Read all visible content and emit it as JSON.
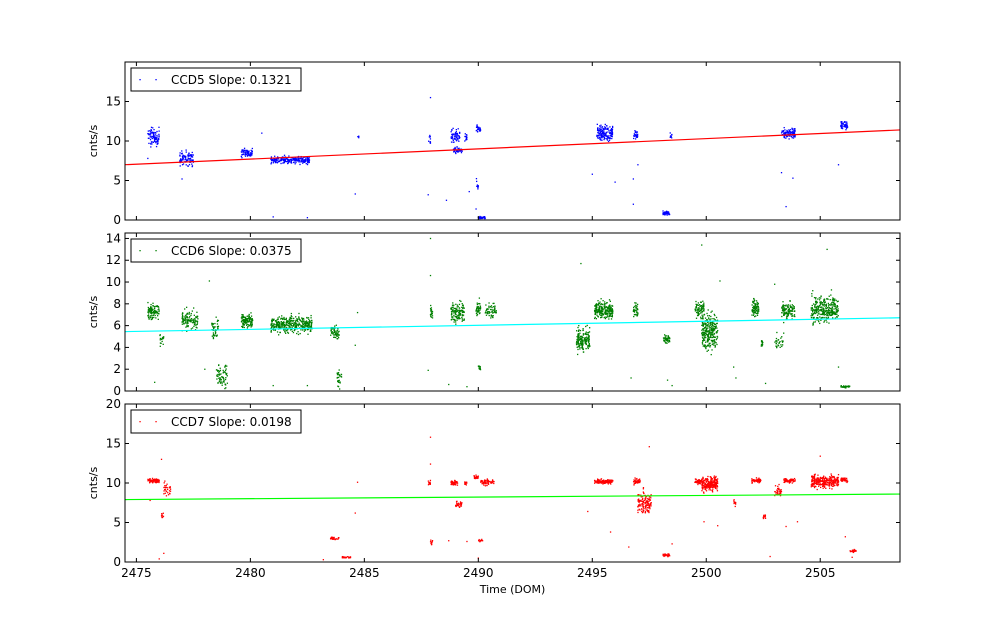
{
  "chart_data": {
    "type": "scatter",
    "xlabel": "Time (DOM)",
    "xlim": [
      2474.5,
      2508.5
    ],
    "xticks": [
      2475,
      2480,
      2485,
      2490,
      2495,
      2500,
      2505
    ],
    "legend_placement": "top-left",
    "grid": false,
    "panels": [
      {
        "name": "CCD5",
        "legend": "CCD5 Slope: 0.1321",
        "ylabel": "cnts/s",
        "ylim": [
          0,
          20
        ],
        "yticks": [
          0,
          5,
          10,
          15
        ],
        "color": "#0000ff",
        "fit_color": "#ff0000",
        "fit": {
          "x0": 2474.5,
          "y0": 7.0,
          "x1": 2508.5,
          "y1": 11.4
        },
        "clusters": [
          {
            "x0": 2475.5,
            "x1": 2476.0,
            "y": 10.5,
            "spread": 1.2,
            "n": 90
          },
          {
            "x0": 2476.9,
            "x1": 2477.5,
            "y": 7.8,
            "spread": 1.0,
            "n": 90
          },
          {
            "x0": 2479.6,
            "x1": 2480.1,
            "y": 8.5,
            "spread": 0.6,
            "n": 70
          },
          {
            "x0": 2480.9,
            "x1": 2482.6,
            "y": 7.6,
            "spread": 0.5,
            "n": 220
          },
          {
            "x0": 2484.7,
            "x1": 2484.8,
            "y": 10.5,
            "spread": 0.2,
            "n": 4
          },
          {
            "x0": 2487.8,
            "x1": 2487.9,
            "y": 10.3,
            "spread": 1.2,
            "n": 10
          },
          {
            "x0": 2488.8,
            "x1": 2489.2,
            "y": 10.5,
            "spread": 1.0,
            "n": 60
          },
          {
            "x0": 2488.9,
            "x1": 2489.3,
            "y": 8.8,
            "spread": 0.4,
            "n": 40
          },
          {
            "x0": 2489.4,
            "x1": 2489.5,
            "y": 10.5,
            "spread": 0.7,
            "n": 15
          },
          {
            "x0": 2489.9,
            "x1": 2490.1,
            "y": 11.6,
            "spread": 0.5,
            "n": 25
          },
          {
            "x0": 2489.9,
            "x1": 2490.0,
            "y": 4.5,
            "spread": 1.0,
            "n": 10
          },
          {
            "x0": 2490.0,
            "x1": 2490.3,
            "y": 0.3,
            "spread": 0.15,
            "n": 35
          },
          {
            "x0": 2495.2,
            "x1": 2495.9,
            "y": 11.0,
            "spread": 1.0,
            "n": 150
          },
          {
            "x0": 2496.8,
            "x1": 2497.0,
            "y": 10.8,
            "spread": 0.5,
            "n": 30
          },
          {
            "x0": 2498.1,
            "x1": 2498.4,
            "y": 0.9,
            "spread": 0.3,
            "n": 40
          },
          {
            "x0": 2498.4,
            "x1": 2498.5,
            "y": 10.7,
            "spread": 0.5,
            "n": 8
          },
          {
            "x0": 2503.3,
            "x1": 2503.9,
            "y": 11.0,
            "spread": 0.8,
            "n": 100
          },
          {
            "x0": 2505.9,
            "x1": 2506.2,
            "y": 12.0,
            "spread": 0.6,
            "n": 50
          }
        ],
        "outliers": [
          [
            2475.5,
            7.8
          ],
          [
            2477.0,
            5.2
          ],
          [
            2480.5,
            11.0
          ],
          [
            2481.0,
            0.4
          ],
          [
            2482.5,
            0.3
          ],
          [
            2484.6,
            3.3
          ],
          [
            2487.9,
            15.5
          ],
          [
            2487.8,
            3.2
          ],
          [
            2488.6,
            2.5
          ],
          [
            2489.6,
            3.6
          ],
          [
            2489.9,
            1.4
          ],
          [
            2495.0,
            5.8
          ],
          [
            2496.0,
            4.8
          ],
          [
            2496.8,
            2.0
          ],
          [
            2496.8,
            5.2
          ],
          [
            2497.0,
            7.0
          ],
          [
            2503.3,
            6.0
          ],
          [
            2503.5,
            1.7
          ],
          [
            2503.8,
            5.3
          ],
          [
            2505.8,
            7.0
          ]
        ]
      },
      {
        "name": "CCD6",
        "legend": "CCD6 Slope: 0.0375",
        "ylabel": "cnts/s",
        "ylim": [
          0,
          14.5
        ],
        "yticks": [
          0,
          2,
          4,
          6,
          8,
          10,
          12,
          14
        ],
        "color": "#008000",
        "fit_color": "#00ffff",
        "fit": {
          "x0": 2474.5,
          "y0": 5.45,
          "x1": 2508.5,
          "y1": 6.72
        },
        "clusters": [
          {
            "x0": 2475.5,
            "x1": 2476.0,
            "y": 7.3,
            "spread": 0.8,
            "n": 100
          },
          {
            "x0": 2476.0,
            "x1": 2476.2,
            "y": 4.7,
            "spread": 0.5,
            "n": 20
          },
          {
            "x0": 2477.0,
            "x1": 2477.7,
            "y": 6.5,
            "spread": 0.9,
            "n": 120
          },
          {
            "x0": 2478.3,
            "x1": 2478.6,
            "y": 5.8,
            "spread": 0.9,
            "n": 50
          },
          {
            "x0": 2478.5,
            "x1": 2479.0,
            "y": 1.5,
            "spread": 1.2,
            "n": 70
          },
          {
            "x0": 2479.6,
            "x1": 2480.1,
            "y": 6.4,
            "spread": 0.7,
            "n": 120
          },
          {
            "x0": 2480.9,
            "x1": 2482.7,
            "y": 6.1,
            "spread": 0.8,
            "n": 380
          },
          {
            "x0": 2483.5,
            "x1": 2483.9,
            "y": 5.4,
            "spread": 0.7,
            "n": 60
          },
          {
            "x0": 2483.8,
            "x1": 2484.0,
            "y": 1.2,
            "spread": 1.0,
            "n": 30
          },
          {
            "x0": 2487.9,
            "x1": 2488.0,
            "y": 7.3,
            "spread": 0.8,
            "n": 20
          },
          {
            "x0": 2488.8,
            "x1": 2489.4,
            "y": 7.2,
            "spread": 0.9,
            "n": 130
          },
          {
            "x0": 2489.9,
            "x1": 2490.1,
            "y": 7.5,
            "spread": 0.8,
            "n": 40
          },
          {
            "x0": 2490.0,
            "x1": 2490.1,
            "y": 2.2,
            "spread": 0.3,
            "n": 12
          },
          {
            "x0": 2490.3,
            "x1": 2490.8,
            "y": 7.4,
            "spread": 0.7,
            "n": 60
          },
          {
            "x0": 2494.3,
            "x1": 2494.9,
            "y": 4.7,
            "spread": 1.3,
            "n": 170
          },
          {
            "x0": 2495.1,
            "x1": 2495.9,
            "y": 7.4,
            "spread": 0.8,
            "n": 230
          },
          {
            "x0": 2496.8,
            "x1": 2497.0,
            "y": 7.4,
            "spread": 0.7,
            "n": 40
          },
          {
            "x0": 2498.1,
            "x1": 2498.4,
            "y": 4.8,
            "spread": 0.5,
            "n": 40
          },
          {
            "x0": 2499.5,
            "x1": 2499.9,
            "y": 7.5,
            "spread": 0.8,
            "n": 80
          },
          {
            "x0": 2499.8,
            "x1": 2500.5,
            "y": 5.5,
            "spread": 1.8,
            "n": 260
          },
          {
            "x0": 2502.0,
            "x1": 2502.3,
            "y": 7.6,
            "spread": 0.8,
            "n": 80
          },
          {
            "x0": 2502.4,
            "x1": 2502.5,
            "y": 4.4,
            "spread": 0.4,
            "n": 15
          },
          {
            "x0": 2503.3,
            "x1": 2503.9,
            "y": 7.4,
            "spread": 0.9,
            "n": 120
          },
          {
            "x0": 2503.0,
            "x1": 2503.4,
            "y": 4.5,
            "spread": 0.8,
            "n": 30
          },
          {
            "x0": 2504.6,
            "x1": 2505.8,
            "y": 7.5,
            "spread": 1.3,
            "n": 300
          },
          {
            "x0": 2505.9,
            "x1": 2506.3,
            "y": 0.4,
            "spread": 0.1,
            "n": 35
          }
        ],
        "outliers": [
          [
            2475.8,
            0.8
          ],
          [
            2478.2,
            10.1
          ],
          [
            2478.0,
            2.0
          ],
          [
            2481.0,
            0.5
          ],
          [
            2482.5,
            0.5
          ],
          [
            2484.7,
            7.2
          ],
          [
            2484.6,
            4.2
          ],
          [
            2487.9,
            14.0
          ],
          [
            2487.9,
            10.6
          ],
          [
            2487.8,
            1.9
          ],
          [
            2488.7,
            0.6
          ],
          [
            2489.5,
            0.4
          ],
          [
            2494.5,
            11.7
          ],
          [
            2496.7,
            1.2
          ],
          [
            2498.3,
            1.0
          ],
          [
            2498.5,
            0.5
          ],
          [
            2499.8,
            13.4
          ],
          [
            2500.6,
            10.1
          ],
          [
            2501.2,
            2.2
          ],
          [
            2501.3,
            1.2
          ],
          [
            2502.6,
            0.7
          ],
          [
            2503.0,
            9.8
          ],
          [
            2505.3,
            13.0
          ],
          [
            2505.8,
            2.2
          ]
        ]
      },
      {
        "name": "CCD7",
        "legend": "CCD7 Slope: 0.0198",
        "ylabel": "cnts/s",
        "ylim": [
          0,
          20
        ],
        "yticks": [
          0,
          5,
          10,
          15,
          20
        ],
        "color": "#ff0000",
        "fit_color": "#00ff00",
        "fit": {
          "x0": 2474.5,
          "y0": 7.9,
          "x1": 2508.5,
          "y1": 8.6
        },
        "clusters": [
          {
            "x0": 2475.5,
            "x1": 2476.0,
            "y": 10.3,
            "spread": 0.3,
            "n": 80
          },
          {
            "x0": 2476.2,
            "x1": 2476.5,
            "y": 9.2,
            "spread": 1.0,
            "n": 30
          },
          {
            "x0": 2476.1,
            "x1": 2476.2,
            "y": 5.9,
            "spread": 0.3,
            "n": 10
          },
          {
            "x0": 2483.5,
            "x1": 2483.9,
            "y": 3.0,
            "spread": 0.2,
            "n": 30
          },
          {
            "x0": 2484.0,
            "x1": 2484.4,
            "y": 0.6,
            "spread": 0.1,
            "n": 25
          },
          {
            "x0": 2487.8,
            "x1": 2487.9,
            "y": 10.0,
            "spread": 0.5,
            "n": 15
          },
          {
            "x0": 2487.9,
            "x1": 2488.0,
            "y": 2.5,
            "spread": 0.6,
            "n": 10
          },
          {
            "x0": 2488.8,
            "x1": 2489.1,
            "y": 10.0,
            "spread": 0.4,
            "n": 40
          },
          {
            "x0": 2489.0,
            "x1": 2489.3,
            "y": 7.3,
            "spread": 0.4,
            "n": 30
          },
          {
            "x0": 2489.4,
            "x1": 2489.5,
            "y": 10.0,
            "spread": 0.3,
            "n": 12
          },
          {
            "x0": 2489.8,
            "x1": 2490.0,
            "y": 10.7,
            "spread": 0.3,
            "n": 25
          },
          {
            "x0": 2490.1,
            "x1": 2490.7,
            "y": 10.1,
            "spread": 0.4,
            "n": 60
          },
          {
            "x0": 2490.0,
            "x1": 2490.2,
            "y": 2.7,
            "spread": 0.2,
            "n": 12
          },
          {
            "x0": 2495.1,
            "x1": 2495.9,
            "y": 10.2,
            "spread": 0.3,
            "n": 140
          },
          {
            "x0": 2496.8,
            "x1": 2497.1,
            "y": 10.2,
            "spread": 0.4,
            "n": 40
          },
          {
            "x0": 2497.0,
            "x1": 2497.6,
            "y": 7.5,
            "spread": 1.5,
            "n": 130
          },
          {
            "x0": 2498.1,
            "x1": 2498.4,
            "y": 0.9,
            "spread": 0.2,
            "n": 30
          },
          {
            "x0": 2499.5,
            "x1": 2499.8,
            "y": 10.2,
            "spread": 0.4,
            "n": 50
          },
          {
            "x0": 2499.8,
            "x1": 2500.5,
            "y": 9.9,
            "spread": 1.0,
            "n": 220
          },
          {
            "x0": 2501.2,
            "x1": 2501.3,
            "y": 7.5,
            "spread": 0.5,
            "n": 10
          },
          {
            "x0": 2502.0,
            "x1": 2502.4,
            "y": 10.3,
            "spread": 0.3,
            "n": 50
          },
          {
            "x0": 2502.5,
            "x1": 2502.6,
            "y": 5.7,
            "spread": 0.3,
            "n": 12
          },
          {
            "x0": 2503.0,
            "x1": 2503.3,
            "y": 9.0,
            "spread": 0.8,
            "n": 40
          },
          {
            "x0": 2503.4,
            "x1": 2503.9,
            "y": 10.3,
            "spread": 0.3,
            "n": 60
          },
          {
            "x0": 2504.6,
            "x1": 2505.8,
            "y": 10.2,
            "spread": 0.9,
            "n": 280
          },
          {
            "x0": 2505.9,
            "x1": 2506.2,
            "y": 10.4,
            "spread": 0.3,
            "n": 40
          },
          {
            "x0": 2506.3,
            "x1": 2506.6,
            "y": 1.4,
            "spread": 0.2,
            "n": 20
          }
        ],
        "outliers": [
          [
            2475.6,
            7.8
          ],
          [
            2476.1,
            13.0
          ],
          [
            2476.0,
            0.4
          ],
          [
            2476.2,
            1.1
          ],
          [
            2483.2,
            0.3
          ],
          [
            2484.7,
            10.1
          ],
          [
            2484.6,
            6.2
          ],
          [
            2487.9,
            15.8
          ],
          [
            2487.9,
            12.4
          ],
          [
            2488.7,
            2.7
          ],
          [
            2489.5,
            2.6
          ],
          [
            2490.0,
            0.5
          ],
          [
            2494.8,
            6.4
          ],
          [
            2495.8,
            3.8
          ],
          [
            2496.6,
            1.9
          ],
          [
            2497.5,
            14.6
          ],
          [
            2498.5,
            2.3
          ],
          [
            2499.9,
            5.1
          ],
          [
            2500.5,
            4.6
          ],
          [
            2502.8,
            0.7
          ],
          [
            2503.5,
            4.5
          ],
          [
            2504.0,
            5.1
          ],
          [
            2505.0,
            13.4
          ],
          [
            2506.1,
            3.2
          ],
          [
            2506.4,
            0.6
          ]
        ]
      }
    ]
  }
}
